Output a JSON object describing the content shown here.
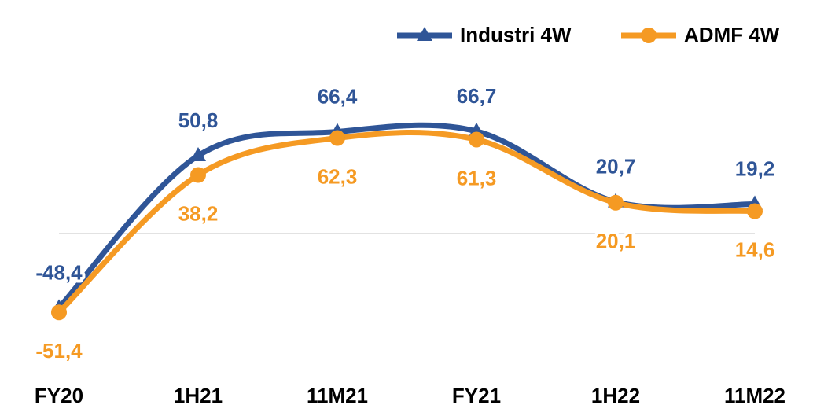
{
  "chart_data": {
    "type": "line",
    "categories": [
      "FY20",
      "1H21",
      "11M21",
      "FY21",
      "1H22",
      "11M22"
    ],
    "series": [
      {
        "name": "Industri 4W",
        "color": "#2f5597",
        "values": [
          -48.4,
          50.8,
          66.4,
          66.7,
          20.7,
          19.2
        ],
        "value_labels": [
          "-48,4",
          "50,8",
          "66,4",
          "66,7",
          "20,7",
          "19,2"
        ]
      },
      {
        "name": "ADMF 4W",
        "color": "#f59a23",
        "values": [
          -51.4,
          38.2,
          62.3,
          61.3,
          20.1,
          14.6
        ],
        "value_labels": [
          "-51,4",
          "38,2",
          "62,3",
          "61,3",
          "20,1",
          "14,6"
        ]
      }
    ],
    "ylim": [
      -70,
      100
    ],
    "legend": "top-right"
  }
}
